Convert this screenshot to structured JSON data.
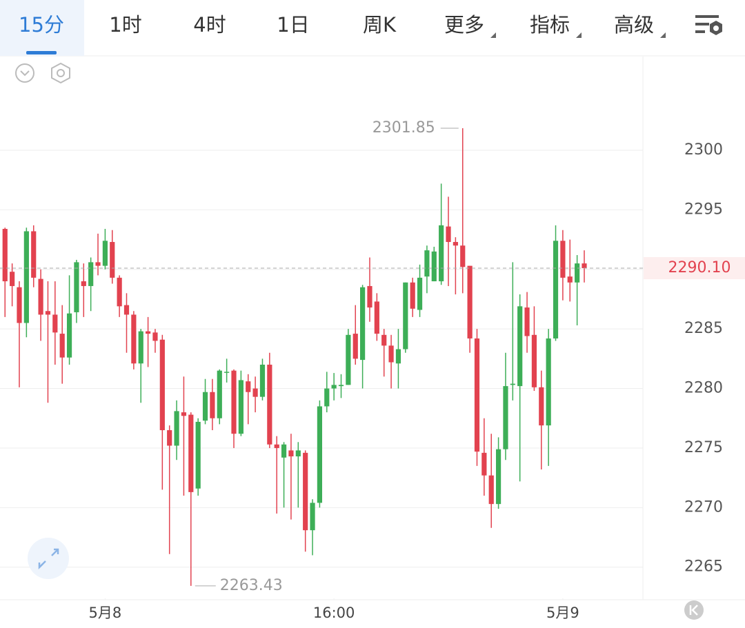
{
  "tabs": [
    "15分",
    "1时",
    "4时",
    "1日",
    "周K",
    "更多",
    "指标",
    "高级"
  ],
  "selected_tab": 0,
  "chart_data": {
    "type": "candlestick",
    "x": [
      0,
      1,
      2,
      3,
      4,
      5,
      6,
      7,
      8,
      9,
      10,
      11,
      12,
      13,
      14,
      15,
      16,
      17,
      18,
      19,
      20,
      21,
      22,
      23,
      24,
      25,
      26,
      27,
      28,
      29,
      30,
      31,
      32,
      33,
      34,
      35,
      36,
      37,
      38,
      39,
      40,
      41,
      42,
      43,
      44,
      45,
      46,
      47,
      48,
      49,
      50,
      51,
      52,
      53,
      54,
      55,
      56,
      57,
      58,
      59,
      60,
      61,
      62,
      63,
      64,
      65,
      66,
      67,
      68,
      69,
      70,
      71,
      72,
      73,
      74,
      75,
      76,
      77,
      78,
      79,
      80,
      81
    ],
    "open": [
      2293.4,
      2289.8,
      2288.5,
      2285.5,
      2293.2,
      2289.2,
      2286.5,
      2286.2,
      2284.6,
      2282.6,
      2286.4,
      2289,
      2288.6,
      2290.6,
      2290.3,
      2292.3,
      2289.3,
      2287,
      2286.2,
      2282.1,
      2284.8,
      2284.7,
      2284.1,
      2276.5,
      2275.2,
      2278,
      2277.8,
      2271.6,
      2277.3,
      2279.7,
      2277.5,
      2281.4,
      2281.5,
      2276.2,
      2280.6,
      2280,
      2279.3,
      2282,
      2275.3,
      2274.2,
      2274.8,
      2274.3,
      2274.6,
      2268.1,
      2270.4,
      2278.5,
      2280,
      2280.2,
      2280.3,
      2284.6,
      2282.4,
      2288.6,
      2287.3,
      2284.5,
      2283.6,
      2282.1,
      2283.3,
      2288.9,
      2286.6,
      2289.4,
      2289,
      2289,
      2293.6,
      2292.3,
      2292,
      2290.3,
      2284.2,
      2274.6,
      2272.7,
      2270.3,
      2274.9,
      2280.3,
      2280.2,
      2286.8,
      2284.5,
      2280.1,
      2276.9,
      2284.2,
      2292.4,
      2289.4,
      2288.9,
      2290.5
    ],
    "high": [
      2293.5,
      2290.5,
      2289,
      2293.5,
      2293.7,
      2290,
      2289,
      2289,
      2287,
      2289.5,
      2290.8,
      2290.5,
      2291,
      2293,
      2293.4,
      2293.3,
      2289.5,
      2288,
      2286.5,
      2285,
      2286,
      2285,
      2284.5,
      2276.9,
      2279,
      2281,
      2278,
      2277.5,
      2280.8,
      2280.8,
      2281.6,
      2282.5,
      2281.6,
      2281.5,
      2281.2,
      2281,
      2282.5,
      2283,
      2276,
      2275.5,
      2276.2,
      2275.5,
      2274.8,
      2270.7,
      2279,
      2281.4,
      2281.3,
      2281.2,
      2285,
      2287,
      2288.7,
      2291,
      2288,
      2285,
      2284.5,
      2285,
      2288.9,
      2289.3,
      2290.4,
      2292,
      2291.9,
      2297.2,
      2296.1,
      2292.7,
      2301.85,
      2290.3,
      2285,
      2277.5,
      2276.2,
      2275.9,
      2283,
      2290.6,
      2287.9,
      2288.1,
      2286.9,
      2281.5,
      2285,
      2293.7,
      2293.3,
      2292.5,
      2291.2,
      2291.6
    ],
    "low": [
      2286,
      2286.9,
      2280.1,
      2284.3,
      2288.5,
      2284,
      2278.8,
      2282,
      2280.4,
      2282,
      2285.5,
      2286,
      2286.5,
      2289.5,
      2290,
      2288.8,
      2286,
      2283,
      2281.6,
      2278.8,
      2281.8,
      2283,
      2271.5,
      2266.1,
      2274,
      2271,
      2263.43,
      2271,
      2277,
      2276.5,
      2277,
      2280.5,
      2275,
      2276,
      2277,
      2278,
      2279,
      2275,
      2269.5,
      2270,
      2269,
      2270,
      2266.3,
      2266,
      2270,
      2278,
      2279,
      2279.2,
      2280.3,
      2282,
      2280,
      2285.6,
      2284,
      2281,
      2280,
      2280,
      2283,
      2286,
      2286,
      2288,
      2289,
      2288.7,
      2288.6,
      2287.9,
      2288,
      2283,
      2273.5,
      2271,
      2268.3,
      2269.9,
      2274,
      2279,
      2272.2,
      2283,
      2279.8,
      2273.2,
      2273.5,
      2284,
      2287.4,
      2287.3,
      2285.3,
      2288.9
    ],
    "close": [
      2289,
      2288.6,
      2285.5,
      2293.2,
      2289.3,
      2286.2,
      2286.2,
      2284.7,
      2282.6,
      2286.3,
      2290.6,
      2288.6,
      2290.6,
      2290.3,
      2292.4,
      2289.3,
      2286.9,
      2286.2,
      2282.1,
      2284.8,
      2284.6,
      2284,
      2276.5,
      2275.2,
      2278.1,
      2277.7,
      2271.3,
      2277.2,
      2279.7,
      2277.5,
      2281.5,
      2281.4,
      2276.2,
      2280.7,
      2279.7,
      2279.3,
      2282,
      2275.3,
      2275,
      2275.3,
      2274.3,
      2274.8,
      2268.1,
      2270.4,
      2278.5,
      2280,
      2280.3,
      2280.3,
      2284.5,
      2282.5,
      2288.5,
      2286.8,
      2284.6,
      2283.6,
      2282.2,
      2283.3,
      2288.9,
      2286.7,
      2289.3,
      2291.6,
      2291.5,
      2293.7,
      2292.3,
      2292,
      2290.2,
      2284.2,
      2274.7,
      2272.7,
      2270.3,
      2274.9,
      2280.2,
      2280.4,
      2286.9,
      2284.4,
      2280.1,
      2276.9,
      2284.2,
      2292.4,
      2289.3,
      2288.9,
      2290.5,
      2290.1
    ],
    "up_color": "#3dae57",
    "down_color": "#e2424f",
    "last_price_label": "2290.10",
    "xlim": [
      -0.7,
      89.2
    ],
    "xticks": [
      {
        "value": 14,
        "label": "5月8"
      },
      {
        "value": 46,
        "label": "16:00"
      },
      {
        "value": 78,
        "label": "5月9"
      }
    ],
    "ylim": [
      2262.38,
      2307.87
    ],
    "yticks": [
      2265,
      2270,
      2275,
      2280,
      2285,
      2290,
      2295,
      2300
    ],
    "grid": true
  }
}
